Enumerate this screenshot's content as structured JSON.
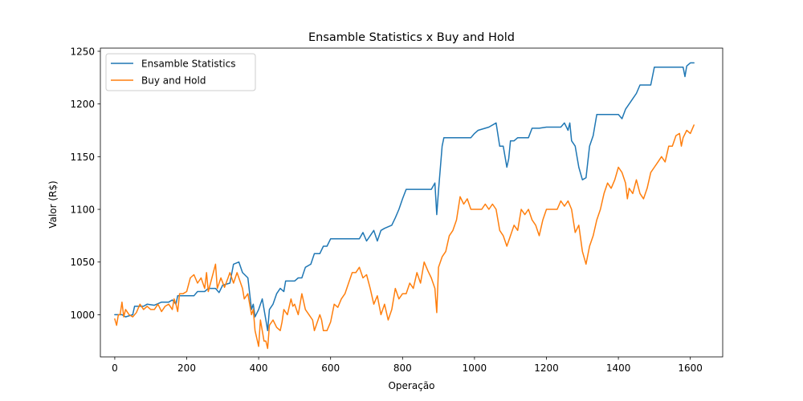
{
  "chart_data": {
    "type": "line",
    "title": "Ensamble Statistics x Buy and Hold",
    "xlabel": "Operação",
    "ylabel": "Valor (R$)",
    "xlim": [
      -40,
      1690
    ],
    "ylim": [
      960,
      1253
    ],
    "xticks": [
      0,
      200,
      400,
      600,
      800,
      1000,
      1200,
      1400,
      1600
    ],
    "yticks": [
      1000,
      1050,
      1100,
      1150,
      1200,
      1250
    ],
    "grid": false,
    "legend": "top-left",
    "series": [
      {
        "name": "Ensamble Statistics",
        "color": "#1f77b4",
        "points": [
          [
            0,
            1000
          ],
          [
            20,
            1000
          ],
          [
            30,
            998
          ],
          [
            50,
            1000
          ],
          [
            55,
            1008
          ],
          [
            80,
            1008
          ],
          [
            90,
            1010
          ],
          [
            110,
            1009
          ],
          [
            130,
            1012
          ],
          [
            150,
            1012
          ],
          [
            160,
            1014
          ],
          [
            170,
            1010
          ],
          [
            175,
            1018
          ],
          [
            200,
            1018
          ],
          [
            220,
            1018
          ],
          [
            230,
            1022
          ],
          [
            250,
            1022
          ],
          [
            260,
            1025
          ],
          [
            280,
            1025
          ],
          [
            290,
            1021
          ],
          [
            300,
            1028
          ],
          [
            320,
            1030
          ],
          [
            330,
            1048
          ],
          [
            345,
            1050
          ],
          [
            355,
            1040
          ],
          [
            370,
            1035
          ],
          [
            380,
            1005
          ],
          [
            385,
            1010
          ],
          [
            390,
            998
          ],
          [
            400,
            1005
          ],
          [
            410,
            1015
          ],
          [
            420,
            995
          ],
          [
            425,
            985
          ],
          [
            430,
            1005
          ],
          [
            440,
            1010
          ],
          [
            450,
            1020
          ],
          [
            460,
            1025
          ],
          [
            470,
            1022
          ],
          [
            475,
            1032
          ],
          [
            500,
            1032
          ],
          [
            510,
            1035
          ],
          [
            520,
            1035
          ],
          [
            530,
            1045
          ],
          [
            545,
            1048
          ],
          [
            555,
            1058
          ],
          [
            570,
            1058
          ],
          [
            580,
            1065
          ],
          [
            590,
            1065
          ],
          [
            600,
            1072
          ],
          [
            680,
            1072
          ],
          [
            690,
            1078
          ],
          [
            700,
            1070
          ],
          [
            710,
            1075
          ],
          [
            720,
            1080
          ],
          [
            730,
            1070
          ],
          [
            740,
            1080
          ],
          [
            750,
            1082
          ],
          [
            770,
            1085
          ],
          [
            780,
            1092
          ],
          [
            790,
            1100
          ],
          [
            800,
            1110
          ],
          [
            810,
            1119
          ],
          [
            880,
            1119
          ],
          [
            890,
            1125
          ],
          [
            895,
            1095
          ],
          [
            900,
            1118
          ],
          [
            910,
            1160
          ],
          [
            915,
            1168
          ],
          [
            990,
            1168
          ],
          [
            1000,
            1172
          ],
          [
            1010,
            1175
          ],
          [
            1040,
            1178
          ],
          [
            1060,
            1182
          ],
          [
            1070,
            1160
          ],
          [
            1080,
            1160
          ],
          [
            1090,
            1140
          ],
          [
            1095,
            1148
          ],
          [
            1100,
            1165
          ],
          [
            1110,
            1165
          ],
          [
            1120,
            1168
          ],
          [
            1150,
            1168
          ],
          [
            1160,
            1177
          ],
          [
            1180,
            1177
          ],
          [
            1200,
            1178
          ],
          [
            1240,
            1178
          ],
          [
            1250,
            1182
          ],
          [
            1260,
            1175
          ],
          [
            1265,
            1182
          ],
          [
            1270,
            1165
          ],
          [
            1280,
            1160
          ],
          [
            1290,
            1140
          ],
          [
            1300,
            1128
          ],
          [
            1310,
            1130
          ],
          [
            1320,
            1160
          ],
          [
            1330,
            1170
          ],
          [
            1340,
            1190
          ],
          [
            1400,
            1190
          ],
          [
            1410,
            1186
          ],
          [
            1420,
            1195
          ],
          [
            1440,
            1205
          ],
          [
            1450,
            1210
          ],
          [
            1460,
            1218
          ],
          [
            1490,
            1218
          ],
          [
            1500,
            1235
          ],
          [
            1580,
            1235
          ],
          [
            1585,
            1226
          ],
          [
            1590,
            1236
          ],
          [
            1600,
            1239
          ],
          [
            1610,
            1239
          ]
        ]
      },
      {
        "name": "Buy and Hold",
        "color": "#ff7f0e",
        "points": [
          [
            0,
            996
          ],
          [
            5,
            990
          ],
          [
            10,
            1000
          ],
          [
            15,
            1000
          ],
          [
            20,
            1012
          ],
          [
            25,
            998
          ],
          [
            30,
            1005
          ],
          [
            40,
            1000
          ],
          [
            50,
            998
          ],
          [
            60,
            1002
          ],
          [
            70,
            1010
          ],
          [
            80,
            1005
          ],
          [
            90,
            1008
          ],
          [
            100,
            1005
          ],
          [
            110,
            1005
          ],
          [
            120,
            1010
          ],
          [
            130,
            1003
          ],
          [
            140,
            1008
          ],
          [
            150,
            1010
          ],
          [
            160,
            1005
          ],
          [
            165,
            1015
          ],
          [
            170,
            1010
          ],
          [
            175,
            1003
          ],
          [
            180,
            1020
          ],
          [
            190,
            1020
          ],
          [
            200,
            1022
          ],
          [
            210,
            1035
          ],
          [
            220,
            1038
          ],
          [
            230,
            1030
          ],
          [
            240,
            1035
          ],
          [
            250,
            1025
          ],
          [
            255,
            1040
          ],
          [
            260,
            1022
          ],
          [
            270,
            1035
          ],
          [
            280,
            1048
          ],
          [
            285,
            1025
          ],
          [
            295,
            1035
          ],
          [
            305,
            1026
          ],
          [
            315,
            1035
          ],
          [
            320,
            1040
          ],
          [
            330,
            1030
          ],
          [
            340,
            1040
          ],
          [
            350,
            1030
          ],
          [
            355,
            1025
          ],
          [
            360,
            1015
          ],
          [
            370,
            1020
          ],
          [
            380,
            1000
          ],
          [
            385,
            1005
          ],
          [
            390,
            985
          ],
          [
            400,
            970
          ],
          [
            405,
            995
          ],
          [
            410,
            985
          ],
          [
            415,
            975
          ],
          [
            420,
            975
          ],
          [
            425,
            968
          ],
          [
            430,
            990
          ],
          [
            440,
            995
          ],
          [
            450,
            988
          ],
          [
            460,
            985
          ],
          [
            465,
            993
          ],
          [
            470,
            1005
          ],
          [
            480,
            1000
          ],
          [
            490,
            1015
          ],
          [
            495,
            1008
          ],
          [
            500,
            1010
          ],
          [
            510,
            1000
          ],
          [
            520,
            1020
          ],
          [
            530,
            1005
          ],
          [
            540,
            1000
          ],
          [
            550,
            995
          ],
          [
            555,
            985
          ],
          [
            560,
            990
          ],
          [
            570,
            1000
          ],
          [
            575,
            995
          ],
          [
            580,
            985
          ],
          [
            590,
            985
          ],
          [
            600,
            993
          ],
          [
            610,
            1010
          ],
          [
            620,
            1007
          ],
          [
            630,
            1015
          ],
          [
            640,
            1020
          ],
          [
            650,
            1030
          ],
          [
            660,
            1040
          ],
          [
            670,
            1040
          ],
          [
            680,
            1045
          ],
          [
            690,
            1035
          ],
          [
            700,
            1038
          ],
          [
            710,
            1025
          ],
          [
            720,
            1010
          ],
          [
            730,
            1018
          ],
          [
            740,
            1000
          ],
          [
            750,
            1010
          ],
          [
            760,
            995
          ],
          [
            770,
            1005
          ],
          [
            780,
            1025
          ],
          [
            790,
            1015
          ],
          [
            800,
            1020
          ],
          [
            810,
            1020
          ],
          [
            820,
            1030
          ],
          [
            830,
            1025
          ],
          [
            840,
            1040
          ],
          [
            850,
            1030
          ],
          [
            860,
            1050
          ],
          [
            870,
            1042
          ],
          [
            880,
            1035
          ],
          [
            890,
            1025
          ],
          [
            895,
            1002
          ],
          [
            900,
            1045
          ],
          [
            910,
            1055
          ],
          [
            920,
            1060
          ],
          [
            930,
            1075
          ],
          [
            940,
            1080
          ],
          [
            950,
            1090
          ],
          [
            960,
            1112
          ],
          [
            970,
            1105
          ],
          [
            980,
            1110
          ],
          [
            990,
            1100
          ],
          [
            1000,
            1100
          ],
          [
            1010,
            1100
          ],
          [
            1020,
            1100
          ],
          [
            1030,
            1105
          ],
          [
            1040,
            1100
          ],
          [
            1050,
            1105
          ],
          [
            1060,
            1100
          ],
          [
            1070,
            1080
          ],
          [
            1080,
            1075
          ],
          [
            1090,
            1065
          ],
          [
            1100,
            1075
          ],
          [
            1110,
            1085
          ],
          [
            1120,
            1080
          ],
          [
            1130,
            1100
          ],
          [
            1140,
            1095
          ],
          [
            1150,
            1100
          ],
          [
            1160,
            1090
          ],
          [
            1170,
            1085
          ],
          [
            1180,
            1075
          ],
          [
            1190,
            1090
          ],
          [
            1200,
            1100
          ],
          [
            1210,
            1100
          ],
          [
            1220,
            1100
          ],
          [
            1230,
            1100
          ],
          [
            1240,
            1108
          ],
          [
            1250,
            1103
          ],
          [
            1260,
            1108
          ],
          [
            1270,
            1100
          ],
          [
            1280,
            1078
          ],
          [
            1290,
            1085
          ],
          [
            1300,
            1060
          ],
          [
            1310,
            1048
          ],
          [
            1320,
            1065
          ],
          [
            1330,
            1075
          ],
          [
            1340,
            1090
          ],
          [
            1350,
            1100
          ],
          [
            1360,
            1115
          ],
          [
            1370,
            1125
          ],
          [
            1380,
            1120
          ],
          [
            1390,
            1128
          ],
          [
            1400,
            1140
          ],
          [
            1410,
            1135
          ],
          [
            1420,
            1125
          ],
          [
            1425,
            1110
          ],
          [
            1430,
            1120
          ],
          [
            1440,
            1115
          ],
          [
            1450,
            1128
          ],
          [
            1460,
            1115
          ],
          [
            1470,
            1110
          ],
          [
            1480,
            1120
          ],
          [
            1490,
            1135
          ],
          [
            1500,
            1140
          ],
          [
            1510,
            1145
          ],
          [
            1520,
            1150
          ],
          [
            1530,
            1145
          ],
          [
            1540,
            1160
          ],
          [
            1550,
            1160
          ],
          [
            1560,
            1170
          ],
          [
            1570,
            1172
          ],
          [
            1575,
            1160
          ],
          [
            1580,
            1168
          ],
          [
            1590,
            1175
          ],
          [
            1600,
            1172
          ],
          [
            1610,
            1180
          ]
        ]
      }
    ]
  }
}
